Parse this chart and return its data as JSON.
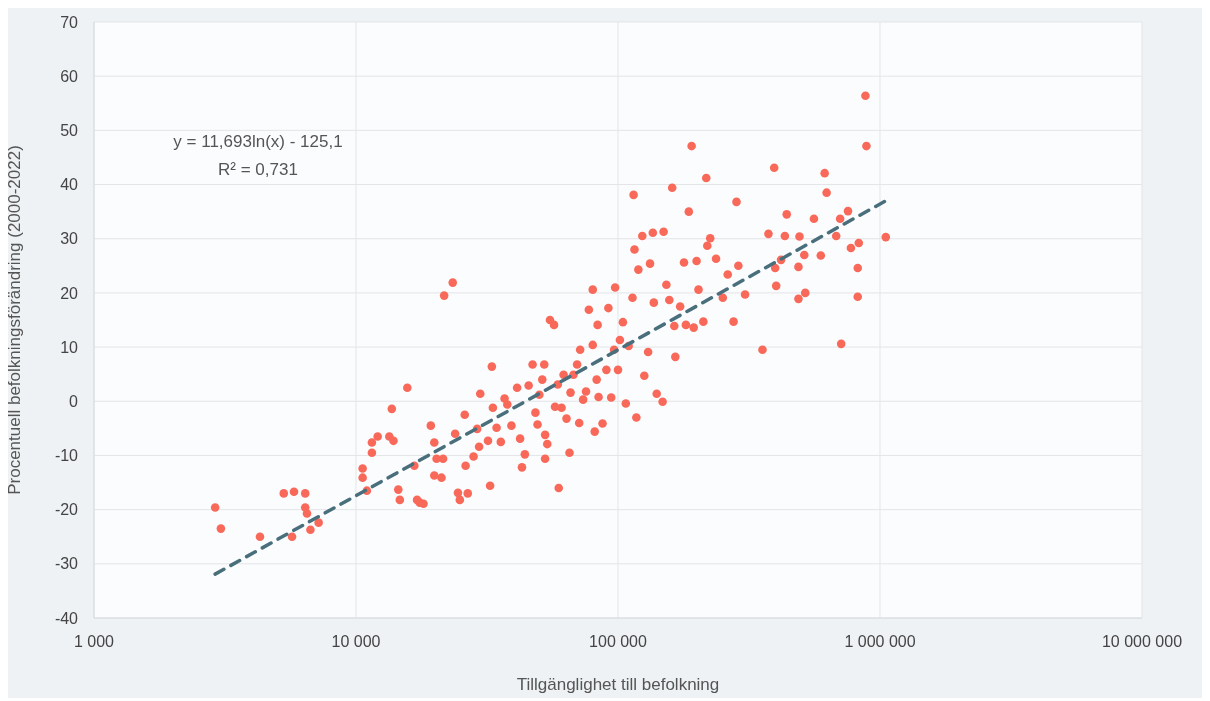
{
  "chart_data": {
    "type": "scatter",
    "xlabel": "Tillgänglighet till befolkning",
    "ylabel": "Procentuell befolkningsförändring (2000-2022)",
    "annotations": [
      "y = 11,693ln(x) - 125,1",
      "R² = 0,731"
    ],
    "log": "x",
    "grid": true,
    "legend": false,
    "xlim": [
      1000,
      10000000
    ],
    "xticks": [
      {
        "value": 1000,
        "label": "1 000"
      },
      {
        "value": 10000,
        "label": "10 000"
      },
      {
        "value": 100000,
        "label": "100 000"
      },
      {
        "value": 1000000,
        "label": "1 000 000"
      },
      {
        "value": 10000000,
        "label": "10 000 000"
      }
    ],
    "ylim": [
      -40,
      70
    ],
    "yticks": [
      -40,
      -30,
      -20,
      -10,
      0,
      10,
      20,
      30,
      40,
      50,
      60,
      70
    ],
    "series": [
      {
        "color": "#f8695a",
        "marker": "circle",
        "x": [
          2900,
          3050,
          4300,
          5300,
          5800,
          5700,
          6400,
          6400,
          6500,
          6700,
          7200,
          10600,
          10600,
          11000,
          11500,
          11500,
          12100,
          13400,
          13700,
          13900,
          14500,
          14700,
          15700,
          16700,
          17100,
          17500,
          18100,
          19300,
          19900,
          20300,
          21500,
          19900,
          21200,
          21700,
          23400,
          23900,
          24500,
          24900,
          26000,
          26200,
          26700,
          28100,
          29000,
          29500,
          29800,
          31900,
          32500,
          33000,
          33300,
          34400,
          35700,
          36900,
          37800,
          39200,
          41200,
          42300,
          43000,
          44100,
          45600,
          47200,
          48400,
          49300,
          50100,
          51400,
          52300,
          52700,
          52700,
          53700,
          55000,
          57000,
          57500,
          58900,
          59400,
          60900,
          62000,
          63600,
          65900,
          67600,
          65300,
          69800,
          71100,
          71700,
          73600,
          75500,
          77400,
          80100,
          80100,
          81500,
          82900,
          83600,
          84300,
          87300,
          90300,
          91900,
          94200,
          96600,
          97500,
          100000,
          101700,
          104400,
          107100,
          109800,
          113600,
          114700,
          115600,
          117500,
          119600,
          123800,
          126000,
          130300,
          132500,
          135800,
          137000,
          140500,
          149300,
          148000,
          153000,
          157000,
          161000,
          164000,
          165500,
          172700,
          178600,
          181600,
          186300,
          191000,
          194500,
          199500,
          202900,
          211700,
          217200,
          219200,
          224900,
          236700,
          251200,
          262300,
          276100,
          283300,
          288000,
          305500,
          356000,
          375200,
          394600,
          398000,
          401600,
          419100,
          433400,
          440500,
          488400,
          488400,
          492900,
          514000,
          518500,
          559600,
          594300,
          614800,
          625500,
          680600,
          704400,
          710900,
          754800,
          774300,
          822200,
          822200,
          829800,
          879800,
          887600,
          1052000
        ],
        "values": [
          -19.6,
          -23.5,
          -25,
          -17,
          -16.7,
          -25,
          -17,
          -19.6,
          -20.7,
          -23.7,
          -22.4,
          -12.4,
          -14.1,
          -16.5,
          -7.6,
          -9.5,
          -6.5,
          -6.5,
          -1.4,
          -7.3,
          -16.3,
          -18.2,
          2.5,
          -11.9,
          -18.2,
          -18.7,
          -18.9,
          -4.5,
          -7.6,
          -10.6,
          -10.6,
          -13.7,
          -14.1,
          19.5,
          21.9,
          -6,
          -16.9,
          -18.2,
          -2.5,
          -11.9,
          -17,
          -10.2,
          -5.1,
          -8.4,
          1.4,
          -7.3,
          -15.6,
          6.4,
          -1.2,
          -4.9,
          -7.5,
          0.5,
          -0.6,
          -4.5,
          2.5,
          -6.9,
          -12.2,
          -9.8,
          2.9,
          6.8,
          -2.1,
          -4.3,
          1.2,
          4,
          6.8,
          -6.2,
          -10.6,
          -7.9,
          15,
          14.1,
          -1,
          3.1,
          -16,
          -1.2,
          4.9,
          -3.2,
          1.6,
          4.9,
          -9.5,
          6.8,
          -4,
          9.5,
          0.3,
          1.8,
          16.9,
          20.6,
          10.4,
          -5.6,
          4,
          14.1,
          0.8,
          -4.1,
          5.8,
          17.2,
          0.7,
          9.5,
          21,
          5.8,
          11.3,
          14.6,
          -0.4,
          10.2,
          19.1,
          38.1,
          28,
          -3,
          24.3,
          30.5,
          4.7,
          9.1,
          25.4,
          31.1,
          18.2,
          1.4,
          31.3,
          -0.1,
          21.5,
          18.7,
          39.4,
          13.9,
          8.2,
          17.5,
          25.6,
          14.1,
          35,
          47.1,
          13.6,
          25.9,
          20.6,
          14.7,
          41.2,
          28.7,
          30.1,
          26.3,
          19.1,
          23.4,
          14.7,
          36.8,
          25,
          19.7,
          9.5,
          30.9,
          43.1,
          24.6,
          21.3,
          26.1,
          30.5,
          34.5,
          18.9,
          24.8,
          30.4,
          27,
          20,
          33.7,
          26.9,
          42.1,
          38.5,
          30.5,
          33.7,
          10.6,
          35.1,
          28.3,
          24.6,
          19.3,
          29.2,
          56.4,
          47.1,
          30.3
        ]
      },
      {
        "type": "line",
        "color": "#4a6f7c",
        "marker": "none",
        "line_style": "dashed",
        "x": [
          2900,
          1052000
        ],
        "values": [
          -31.9,
          37.0
        ]
      }
    ]
  }
}
